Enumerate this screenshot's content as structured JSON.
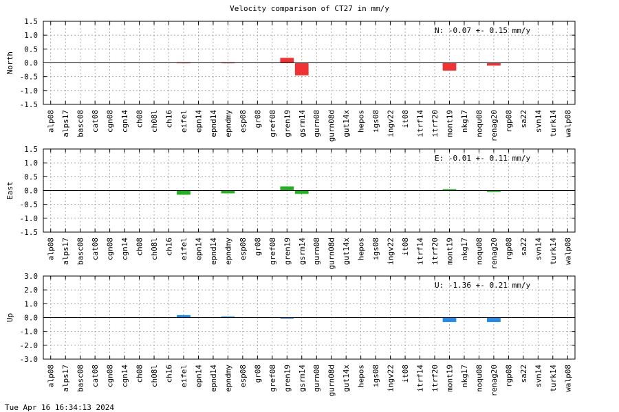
{
  "page": {
    "title": "Velocity comparison of CT27 in mm/y",
    "footer": "Tue Apr 16 16:34:13 2024"
  },
  "chart_data": [
    {
      "type": "bar",
      "ylabel": "North",
      "ylim": [
        -1.5,
        1.5
      ],
      "yticks": [
        "1.5",
        "1.0",
        "0.5",
        "0.0",
        "-0.5",
        "-1.0",
        "-1.5"
      ],
      "grid": true,
      "color": "#f03232",
      "annotation": "N:  -0.07 +-  0.15 mm/y",
      "categories": [
        "alp08",
        "alps17",
        "basc08",
        "cat08",
        "cgn08",
        "cgn14",
        "ch08",
        "ch08l",
        "ch16",
        "eifel",
        "epn14",
        "epnd14",
        "epndmy",
        "esp08",
        "gr08",
        "gref08",
        "gren19",
        "gsrm14",
        "gurn08",
        "gurn08d",
        "gut14x",
        "hepos",
        "igs08",
        "ingv22",
        "it08",
        "itrf14",
        "itrf20",
        "mont19",
        "nkg17",
        "noqu08",
        "renag20",
        "rgp08",
        "sa22",
        "svn14",
        "turk14",
        "walp08"
      ],
      "values": [
        0,
        0,
        0,
        0,
        0,
        0,
        0,
        0,
        0,
        0.02,
        0,
        0,
        0.02,
        0,
        0,
        0,
        0.18,
        -0.45,
        0,
        0,
        0,
        0,
        0,
        0,
        0,
        0,
        0,
        -0.28,
        0,
        0,
        -0.1,
        0,
        0,
        0,
        0,
        0
      ]
    },
    {
      "type": "bar",
      "ylabel": "East",
      "ylim": [
        -1.5,
        1.5
      ],
      "yticks": [
        "1.5",
        "1.0",
        "0.5",
        "0.0",
        "-0.5",
        "-1.0",
        "-1.5"
      ],
      "grid": true,
      "color": "#1eb41e",
      "annotation": "E:  -0.01 +-  0.11 mm/y",
      "categories": [
        "alp08",
        "alps17",
        "basc08",
        "cat08",
        "cgn08",
        "cgn14",
        "ch08",
        "ch08l",
        "ch16",
        "eifel",
        "epn14",
        "epnd14",
        "epndmy",
        "esp08",
        "gr08",
        "gref08",
        "gren19",
        "gsrm14",
        "gurn08",
        "gurn08d",
        "gut14x",
        "hepos",
        "igs08",
        "ingv22",
        "it08",
        "itrf14",
        "itrf20",
        "mont19",
        "nkg17",
        "noqu08",
        "renag20",
        "rgp08",
        "sa22",
        "svn14",
        "turk14",
        "walp08"
      ],
      "values": [
        0,
        0,
        0,
        0,
        0,
        0,
        0,
        0,
        0,
        -0.15,
        0,
        0,
        -0.1,
        0,
        0,
        0,
        0.15,
        -0.12,
        0,
        0,
        0,
        0,
        0,
        0,
        0,
        0,
        0,
        0.05,
        0,
        0,
        -0.05,
        0,
        0,
        0,
        0,
        0
      ]
    },
    {
      "type": "bar",
      "ylabel": "Up",
      "ylim": [
        -3.0,
        3.0
      ],
      "yticks": [
        "3.0",
        "2.0",
        "1.0",
        "0.0",
        "-1.0",
        "-2.0",
        "-3.0"
      ],
      "grid": true,
      "color": "#1e8cf0",
      "annotation": "U:  -1.36 +-  0.21 mm/y",
      "categories": [
        "alp08",
        "alps17",
        "basc08",
        "cat08",
        "cgn08",
        "cgn14",
        "ch08",
        "ch08l",
        "ch16",
        "eifel",
        "epn14",
        "epnd14",
        "epndmy",
        "esp08",
        "gr08",
        "gref08",
        "gren19",
        "gsrm14",
        "gurn08",
        "gurn08d",
        "gut14x",
        "hepos",
        "igs08",
        "ingv22",
        "it08",
        "itrf14",
        "itrf20",
        "mont19",
        "nkg17",
        "noqu08",
        "renag20",
        "rgp08",
        "sa22",
        "svn14",
        "turk14",
        "walp08"
      ],
      "values": [
        0,
        0,
        0,
        0,
        0,
        0,
        0,
        0,
        0,
        0.18,
        0,
        0,
        0.08,
        0,
        0,
        0,
        -0.05,
        0,
        0,
        0,
        0,
        0,
        0,
        0,
        0,
        0,
        0,
        -0.32,
        0,
        0,
        -0.32,
        0,
        0,
        0,
        0,
        0
      ]
    }
  ]
}
